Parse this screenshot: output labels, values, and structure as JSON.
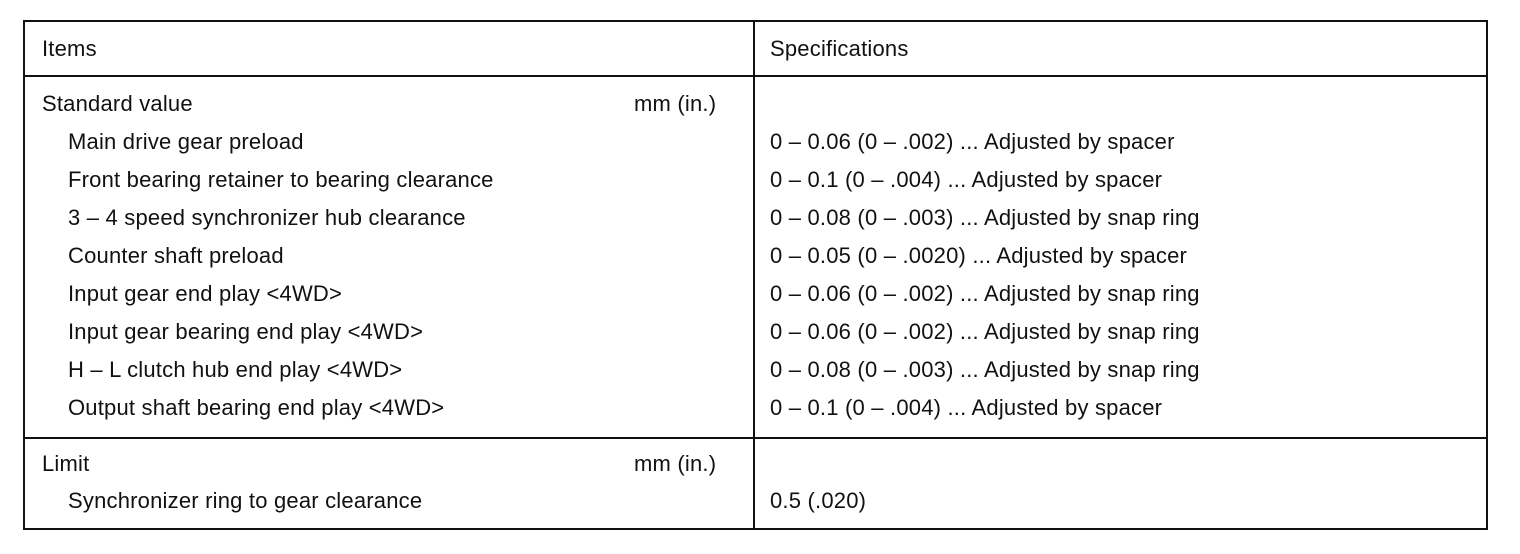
{
  "header": {
    "items": "Items",
    "specifications": "Specifications"
  },
  "standard": {
    "label": "Standard value",
    "unit": "mm (in.)",
    "rows": [
      {
        "item": "Main drive gear preload",
        "spec": "0 – 0.06 (0 – .002) ... Adjusted by spacer"
      },
      {
        "item": "Front bearing retainer to bearing clearance",
        "spec": "0 – 0.1 (0 – .004) ... Adjusted by spacer"
      },
      {
        "item": "3 – 4 speed synchronizer hub clearance",
        "spec": "0 – 0.08 (0 – .003) ... Adjusted by snap ring"
      },
      {
        "item": "Counter shaft preload",
        "spec": "0 – 0.05 (0 – .0020) ... Adjusted by spacer"
      },
      {
        "item": "Input gear end play <4WD>",
        "spec": "0 – 0.06 (0 – .002) ... Adjusted by snap ring"
      },
      {
        "item": "Input gear bearing end play <4WD>",
        "spec": "0 – 0.06 (0 – .002) ... Adjusted by snap ring"
      },
      {
        "item": "H – L clutch hub end play <4WD>",
        "spec": "0 – 0.08 (0 – .003) ... Adjusted by snap ring"
      },
      {
        "item": "Output shaft bearing end play <4WD>",
        "spec": "0 – 0.1 (0 – .004) ... Adjusted by spacer"
      }
    ]
  },
  "limit": {
    "label": "Limit",
    "unit": "mm (in.)",
    "rows": [
      {
        "item": "Synchronizer ring to gear clearance",
        "spec": "0.5 (.020)"
      }
    ]
  }
}
